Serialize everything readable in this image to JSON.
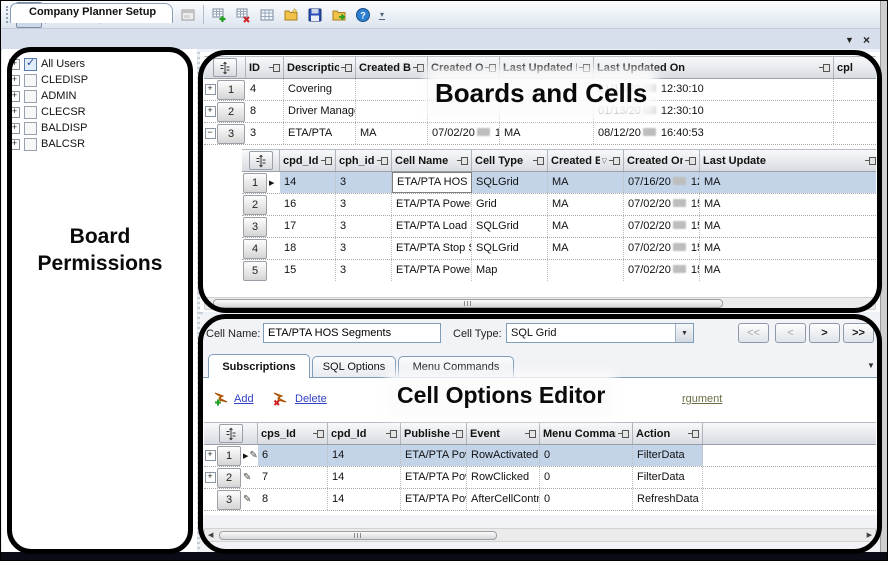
{
  "window": {
    "tab_title": "Company Planner Setup",
    "tab_controls": {
      "scroll": "▼",
      "close": "×"
    }
  },
  "toolbar": {
    "groups": [
      [
        {
          "name": "exit-door",
          "pressed": true
        }
      ],
      [
        {
          "name": "globe"
        },
        {
          "name": "flag"
        }
      ],
      [
        {
          "name": "form-color"
        },
        {
          "name": "form-gray"
        },
        {
          "name": "form-gray"
        },
        {
          "name": "form-gray"
        }
      ],
      [
        {
          "name": "grid-add"
        },
        {
          "name": "grid-delete"
        },
        {
          "name": "grid-plain"
        },
        {
          "name": "folder-new"
        },
        {
          "name": "save"
        },
        {
          "name": "export"
        },
        {
          "name": "help"
        }
      ]
    ],
    "overflow": "▾"
  },
  "annotations": {
    "board_permissions": "Board Permissions",
    "boards_and_cells": "Boards and Cells",
    "cell_options_editor": "Cell Options Editor"
  },
  "permissions_tree": {
    "items": [
      {
        "label": "All Users",
        "checked": true
      },
      {
        "label": "CLEDISP",
        "checked": false
      },
      {
        "label": "ADMIN",
        "checked": false
      },
      {
        "label": "CLECSR",
        "checked": false
      },
      {
        "label": "BALDISP",
        "checked": false
      },
      {
        "label": "BALCSR",
        "checked": false
      }
    ]
  },
  "boards_grid": {
    "columns": [
      {
        "label": "ID"
      },
      {
        "label": "Description"
      },
      {
        "label": "Created By"
      },
      {
        "label": "Created On"
      },
      {
        "label": "Last Updated By"
      },
      {
        "label": "Last Updated On"
      },
      {
        "label": "cpl"
      }
    ],
    "rows": [
      {
        "num": "1",
        "expand": "+",
        "cells": [
          "4",
          "Covering",
          "",
          "",
          "",
          "01/13/20▒ 12:30:10",
          ""
        ]
      },
      {
        "num": "2",
        "expand": "+",
        "cells": [
          "8",
          "Driver Manage",
          "",
          "",
          "",
          "01/13/20▒ 12:30:10",
          ""
        ]
      },
      {
        "num": "3",
        "expand": "−",
        "cells": [
          "3",
          "ETA/PTA",
          "MA",
          "07/02/20▒ 15:0...",
          "MA",
          "08/12/20▒ 16:40:53",
          ""
        ]
      }
    ]
  },
  "cells_grid": {
    "columns": [
      {
        "label": "cpd_Id"
      },
      {
        "label": "cph_id"
      },
      {
        "label": "Cell Name"
      },
      {
        "label": "Cell Type"
      },
      {
        "label": "Created By",
        "filter": true
      },
      {
        "label": "Created On"
      },
      {
        "label": "Last Update"
      }
    ],
    "rows": [
      {
        "num": "1",
        "selected": true,
        "arrow": true,
        "cells": [
          "14",
          "3",
          "ETA/PTA HOS S...",
          "SQLGrid",
          "MA",
          "07/16/20▒ 12:0...",
          "MA"
        ]
      },
      {
        "num": "2",
        "cells": [
          "16",
          "3",
          "ETA/PTA Power...",
          "Grid",
          "MA",
          "07/02/20▒ 15:0...",
          "MA"
        ]
      },
      {
        "num": "3",
        "cells": [
          "17",
          "3",
          "ETA/PTA Load S...",
          "SQLGrid",
          "MA",
          "07/02/20▒ 15:0...",
          "MA"
        ]
      },
      {
        "num": "4",
        "cells": [
          "18",
          "3",
          "ETA/PTA Stop S...",
          "SQLGrid",
          "MA",
          "07/02/20▒ 15:0...",
          "MA"
        ]
      },
      {
        "num": "5",
        "cells": [
          "15",
          "3",
          "ETA/PTA Power...",
          "Map",
          "",
          "07/02/20▒ 15:0...",
          "MA"
        ]
      }
    ]
  },
  "editor": {
    "cell_name_label": "Cell Name:",
    "cell_name_value": "ETA/PTA HOS Segments",
    "cell_type_label": "Cell Type:",
    "cell_type_value": "SQL Grid",
    "nav_buttons": [
      {
        "label": "<<",
        "enabled": false
      },
      {
        "label": "<",
        "enabled": false
      },
      {
        "label": ">",
        "enabled": true
      },
      {
        "label": ">>",
        "enabled": true
      }
    ],
    "tabs": [
      {
        "label": "Subscriptions",
        "active": true
      },
      {
        "label": "SQL Options",
        "active": false
      },
      {
        "label": "Menu Commands",
        "active": false
      }
    ],
    "add_label": "Add",
    "delete_label": "Delete",
    "argument_link": "rgument"
  },
  "subscriptions_grid": {
    "columns": [
      {
        "label": "cps_Id"
      },
      {
        "label": "cpd_Id"
      },
      {
        "label": "Publisher"
      },
      {
        "label": "Event"
      },
      {
        "label": "Menu Command"
      },
      {
        "label": "Action"
      }
    ],
    "rows": [
      {
        "num": "1",
        "expand": "+",
        "pencil": true,
        "arrow": true,
        "selected": true,
        "cells": [
          "6",
          "14",
          "ETA/PTA Powe...",
          "RowActivated",
          "0",
          "FilterData"
        ]
      },
      {
        "num": "2",
        "expand": "+",
        "pencil": true,
        "cells": [
          "7",
          "14",
          "ETA/PTA Powe...",
          "RowClicked",
          "0",
          "FilterData"
        ]
      },
      {
        "num": "3",
        "pencil": true,
        "cells": [
          "8",
          "14",
          "ETA/PTA Powe...",
          "AfterCellControl...",
          "0",
          "RefreshData"
        ]
      }
    ]
  },
  "colors": {
    "selection": "#c3d4e9",
    "link": "#3141c4",
    "argument_link": "#6e6e45",
    "annotation": "#000000"
  }
}
